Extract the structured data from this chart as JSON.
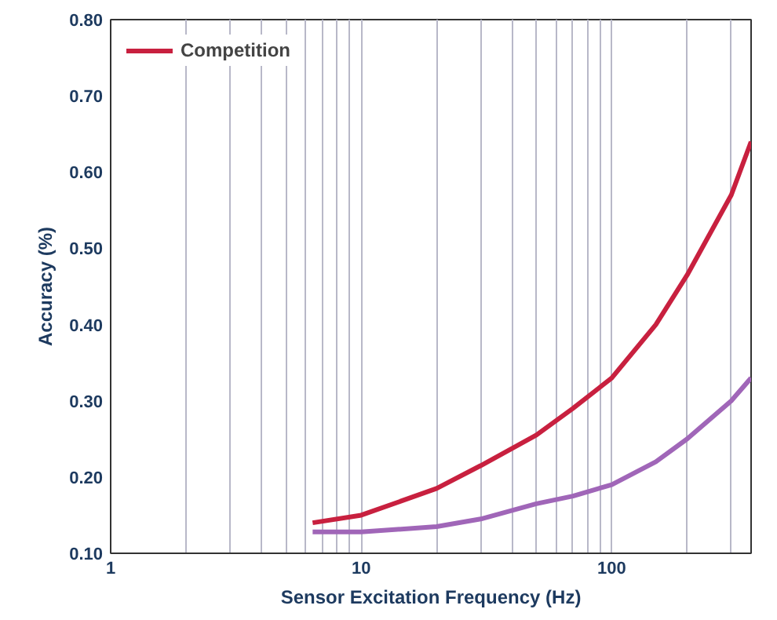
{
  "chart_data": {
    "type": "line",
    "xlabel": "Sensor Excitation Frequency (Hz)",
    "ylabel": "Accuracy (%)",
    "xlim": [
      1,
      360
    ],
    "ylim": [
      0.1,
      0.8
    ],
    "log": "x",
    "grid": "x",
    "legend": "top left",
    "line_style": "solid",
    "marker": "none",
    "xticks": [
      1,
      {
        "value": 2,
        "label": null
      },
      {
        "value": 3,
        "label": null
      },
      {
        "value": 4,
        "label": null
      },
      {
        "value": 5,
        "label": null
      },
      {
        "value": 6,
        "label": null
      },
      {
        "value": 7,
        "label": null
      },
      {
        "value": 8,
        "label": null
      },
      {
        "value": 9,
        "label": null
      },
      10,
      {
        "value": 20,
        "label": null
      },
      {
        "value": 30,
        "label": null
      },
      {
        "value": 40,
        "label": null
      },
      {
        "value": 50,
        "label": null
      },
      {
        "value": 60,
        "label": null
      },
      {
        "value": 70,
        "label": null
      },
      {
        "value": 80,
        "label": null
      },
      {
        "value": 90,
        "label": null
      },
      100,
      {
        "value": 200,
        "label": null
      },
      {
        "value": 300,
        "label": null
      }
    ],
    "yticks": [
      {
        "value": 0.1,
        "label": "0.10"
      },
      {
        "value": 0.2,
        "label": "0.20"
      },
      {
        "value": 0.3,
        "label": "0.30"
      },
      {
        "value": 0.4,
        "label": "0.40"
      },
      {
        "value": 0.5,
        "label": "0.50"
      },
      {
        "value": 0.6,
        "label": "0.60"
      },
      {
        "value": 0.7,
        "label": "0.70"
      },
      {
        "value": 0.8,
        "label": "0.80"
      }
    ],
    "x": [
      6.4,
      10,
      20,
      30,
      50,
      70,
      100,
      150,
      200,
      300,
      360
    ],
    "series": [
      {
        "color": "#a066b8",
        "values": [
          0.128,
          0.128,
          0.135,
          0.145,
          0.165,
          0.175,
          0.19,
          0.22,
          0.25,
          0.3,
          0.33
        ]
      },
      {
        "name": "Competition",
        "color": "#c8203f",
        "values": [
          0.14,
          0.15,
          0.185,
          0.215,
          0.255,
          0.29,
          0.33,
          0.4,
          0.465,
          0.57,
          0.64
        ]
      }
    ]
  }
}
